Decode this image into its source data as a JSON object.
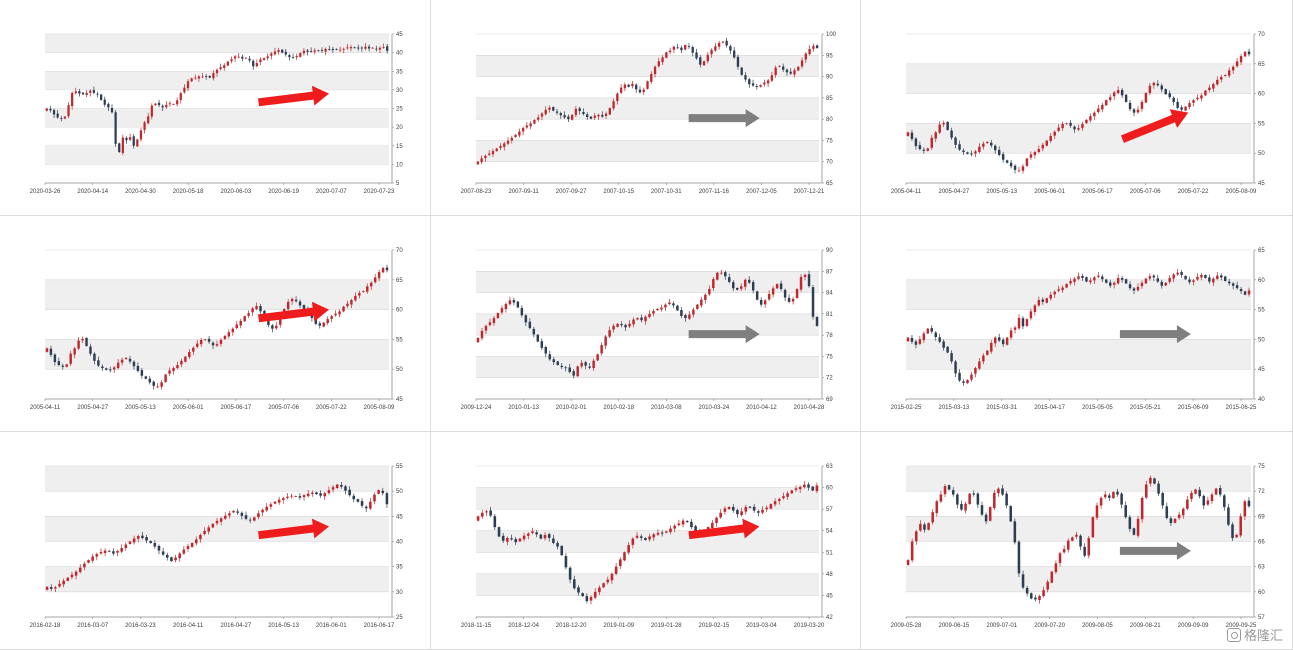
{
  "colors": {
    "up": "#c0282d",
    "down": "#2e3e52",
    "band": "#efefef",
    "arrow_red": "#ee1c1c",
    "arrow_gray": "#7f7f7f"
  },
  "watermark": {
    "text": "格隆汇"
  },
  "chart_data": [
    {
      "type": "candlestick",
      "ylim": [
        5,
        45
      ],
      "yticks": [
        5,
        10,
        15,
        20,
        25,
        30,
        35,
        40,
        45
      ],
      "xticks": [
        "2020-03-26",
        "2020-04-14",
        "2020-04-30",
        "2020-05-18",
        "2020-06-03",
        "2020-06-19",
        "2020-07-07",
        "2020-07-23"
      ],
      "arrow": "red",
      "closes": [
        25.0,
        24.5,
        23.4,
        22.6,
        22.3,
        22.8,
        25.9,
        29.2,
        29.6,
        29.0,
        28.8,
        29.2,
        29.8,
        29.2,
        28.8,
        27.3,
        26.0,
        25.3,
        24.0,
        15.5,
        13.3,
        17.2,
        16.5,
        17.3,
        15.0,
        16.7,
        19.1,
        21.3,
        22.9,
        25.8,
        26.3,
        25.9,
        25.3,
        26.0,
        26.4,
        26.2,
        27.2,
        29.1,
        30.6,
        32.3,
        33.1,
        33.3,
        33.6,
        33.6,
        33.5,
        33.3,
        34.5,
        35.4,
        36.1,
        36.6,
        37.6,
        38.2,
        39.0,
        38.9,
        38.4,
        38.6,
        37.9,
        36.3,
        37.2,
        38.2,
        38.5,
        39.0,
        39.8,
        40.3,
        40.7,
        40.0,
        39.5,
        38.8,
        38.6,
        39.1,
        39.9,
        40.5,
        40.2,
        40.4,
        40.6,
        40.5,
        40.5,
        41.0,
        40.9,
        40.7,
        40.8,
        40.8,
        41.0,
        41.4,
        41.5,
        41.3,
        41.1,
        41.2,
        41.6,
        41.1,
        41.3,
        40.9,
        41.3,
        41.5,
        40.5
      ]
    },
    {
      "type": "candlestick",
      "ylim": [
        65,
        100
      ],
      "yticks": [
        65,
        70,
        75,
        80,
        85,
        90,
        95,
        100
      ],
      "xticks": [
        "2007-08-23",
        "2007-09-11",
        "2007-09-27",
        "2007-10-15",
        "2007-10-31",
        "2007-11-16",
        "2007-12-05",
        "2007-12-21"
      ],
      "arrow": "gray",
      "closes": [
        70.0,
        70.8,
        71.4,
        71.9,
        72.5,
        73.1,
        73.7,
        74.3,
        74.9,
        75.6,
        76.3,
        77.1,
        77.9,
        78.5,
        79.0,
        79.8,
        80.4,
        81.3,
        82.2,
        82.7,
        82.0,
        81.5,
        80.9,
        80.4,
        80.0,
        81.0,
        82.4,
        81.9,
        81.2,
        80.5,
        80.1,
        80.8,
        81.0,
        80.6,
        81.3,
        82.6,
        84.2,
        86.0,
        87.4,
        88.1,
        87.6,
        88.3,
        87.0,
        86.3,
        86.9,
        88.9,
        90.6,
        92.3,
        93.6,
        94.5,
        95.7,
        96.1,
        97.0,
        96.8,
        96.2,
        97.4,
        97.0,
        95.6,
        94.3,
        92.8,
        93.6,
        95.1,
        96.3,
        97.1,
        97.9,
        98.2,
        97.3,
        96.1,
        94.5,
        92.3,
        90.4,
        89.3,
        88.2,
        87.9,
        87.6,
        88.0,
        88.6,
        89.1,
        90.3,
        92.1,
        92.5,
        91.6,
        91.0,
        90.7,
        91.5,
        92.3,
        93.8,
        95.4,
        96.5,
        97.2,
        96.7
      ]
    },
    {
      "type": "candlestick",
      "ylim": [
        45,
        70
      ],
      "yticks": [
        45,
        50,
        55,
        60,
        65,
        70
      ],
      "xticks": [
        "2005-04-11",
        "2005-04-27",
        "2005-05-13",
        "2005-06-01",
        "2005-06-17",
        "2005-07-06",
        "2005-07-22",
        "2005-08-09"
      ],
      "arrow": "red",
      "closes": [
        53.5,
        52.4,
        51.2,
        50.7,
        50.4,
        50.8,
        52.6,
        53.5,
        54.8,
        55.1,
        53.9,
        52.6,
        51.4,
        50.6,
        50.2,
        49.9,
        49.8,
        50.3,
        51.1,
        51.6,
        51.9,
        51.3,
        50.5,
        49.7,
        48.9,
        48.4,
        47.8,
        47.2,
        47.1,
        47.8,
        49.1,
        49.8,
        50.2,
        50.7,
        51.4,
        52.1,
        52.9,
        53.6,
        54.3,
        54.9,
        55.0,
        54.6,
        54.0,
        54.2,
        54.9,
        55.6,
        56.2,
        56.8,
        57.5,
        58.1,
        58.9,
        59.4,
        60.2,
        60.6,
        59.7,
        58.6,
        57.4,
        56.8,
        57.3,
        58.6,
        60.1,
        61.3,
        61.8,
        61.4,
        60.7,
        59.9,
        59.4,
        58.6,
        57.6,
        57.3,
        57.8,
        58.4,
        58.9,
        59.3,
        59.7,
        60.5,
        61.0,
        61.6,
        62.3,
        62.8,
        63.1,
        63.9,
        64.5,
        65.4,
        66.3,
        67.0,
        66.6
      ]
    },
    {
      "type": "candlestick",
      "ylim": [
        45,
        70
      ],
      "yticks": [
        45,
        50,
        55,
        60,
        65,
        70
      ],
      "xticks": [
        "2005-04-11",
        "2005-04-27",
        "2005-05-13",
        "2005-06-01",
        "2005-06-17",
        "2005-07-06",
        "2005-07-22",
        "2005-08-09"
      ],
      "arrow": "red",
      "closes": [
        53.5,
        52.4,
        51.2,
        50.7,
        50.4,
        50.8,
        52.6,
        53.5,
        54.8,
        55.1,
        53.9,
        52.6,
        51.4,
        50.6,
        50.2,
        49.9,
        49.8,
        50.3,
        51.1,
        51.6,
        51.9,
        51.3,
        50.5,
        49.7,
        48.9,
        48.4,
        47.8,
        47.2,
        47.1,
        47.8,
        49.1,
        49.8,
        50.2,
        50.7,
        51.4,
        52.1,
        52.9,
        53.6,
        54.3,
        54.9,
        55.0,
        54.6,
        54.0,
        54.2,
        54.9,
        55.6,
        56.2,
        56.8,
        57.5,
        58.1,
        58.9,
        59.4,
        60.2,
        60.6,
        59.7,
        58.6,
        57.4,
        56.8,
        57.3,
        58.6,
        60.1,
        61.3,
        61.8,
        61.4,
        60.7,
        59.9,
        59.4,
        58.6,
        57.6,
        57.3,
        57.8,
        58.4,
        58.9,
        59.3,
        59.7,
        60.5,
        61.0,
        61.6,
        62.3,
        62.8,
        63.1,
        63.9,
        64.5,
        65.4,
        66.3,
        67.0,
        66.6
      ]
    },
    {
      "type": "candlestick",
      "ylim": [
        69,
        90
      ],
      "yticks": [
        69,
        72,
        75,
        78,
        81,
        84,
        87,
        90
      ],
      "xticks": [
        "2009-12-24",
        "2010-01-13",
        "2010-02-01",
        "2010-02-18",
        "2010-03-08",
        "2010-03-24",
        "2010-04-12",
        "2010-04-28"
      ],
      "arrow": "gray",
      "closes": [
        77.6,
        78.6,
        79.3,
        79.8,
        80.4,
        81.1,
        81.8,
        82.4,
        82.9,
        82.6,
        81.9,
        80.8,
        79.8,
        79.0,
        78.1,
        77.1,
        76.2,
        75.4,
        74.6,
        74.2,
        73.8,
        73.5,
        73.4,
        72.8,
        72.3,
        73.6,
        74.1,
        73.7,
        73.4,
        74.4,
        75.3,
        76.6,
        77.8,
        78.7,
        79.3,
        79.6,
        79.4,
        79.1,
        79.6,
        80.2,
        80.4,
        80.1,
        80.6,
        81.0,
        81.4,
        81.7,
        81.9,
        82.3,
        82.6,
        82.2,
        81.5,
        80.7,
        80.4,
        80.9,
        81.6,
        82.3,
        83.0,
        83.7,
        84.5,
        85.9,
        86.8,
        86.8,
        86.3,
        85.5,
        84.6,
        84.4,
        84.9,
        85.8,
        85.4,
        84.3,
        83.0,
        82.3,
        82.9,
        83.8,
        84.6,
        85.2,
        84.5,
        83.3,
        82.7,
        83.1,
        84.5,
        86.2,
        86.5,
        84.9,
        80.6,
        79.3
      ]
    },
    {
      "type": "candlestick",
      "ylim": [
        40,
        65
      ],
      "yticks": [
        40,
        45,
        50,
        55,
        60,
        65
      ],
      "xticks": [
        "2015-02-25",
        "2015-03-13",
        "2015-03-31",
        "2015-04-17",
        "2015-05-05",
        "2015-05-21",
        "2015-06-09",
        "2015-06-25"
      ],
      "arrow": "gray",
      "closes": [
        50.3,
        49.6,
        49.1,
        50.0,
        51.0,
        51.8,
        51.3,
        50.4,
        49.6,
        48.6,
        47.8,
        46.3,
        44.3,
        43.1,
        42.7,
        43.2,
        44.1,
        45.2,
        46.3,
        47.3,
        48.1,
        49.4,
        50.3,
        49.8,
        49.2,
        50.3,
        51.5,
        52.0,
        53.6,
        52.2,
        53.4,
        54.7,
        55.7,
        56.6,
        56.3,
        56.9,
        57.5,
        58.0,
        58.4,
        58.7,
        59.3,
        59.8,
        60.2,
        60.6,
        60.3,
        59.7,
        59.9,
        60.4,
        60.7,
        60.1,
        59.5,
        59.0,
        59.5,
        60.3,
        60.0,
        59.4,
        58.6,
        58.2,
        58.8,
        59.5,
        60.2,
        60.6,
        60.4,
        59.7,
        59.0,
        59.5,
        60.3,
        60.9,
        61.2,
        60.8,
        60.1,
        59.6,
        59.9,
        60.5,
        60.8,
        60.3,
        59.7,
        60.2,
        60.7,
        60.4,
        59.8,
        59.4,
        59.0,
        58.6,
        58.1,
        57.5,
        58.2
      ]
    },
    {
      "type": "candlestick",
      "ylim": [
        25,
        55
      ],
      "yticks": [
        25,
        30,
        35,
        40,
        45,
        50,
        55
      ],
      "xticks": [
        "2016-02-18",
        "2016-03-07",
        "2016-03-23",
        "2016-04-11",
        "2016-04-27",
        "2016-05-13",
        "2016-06-01",
        "2016-06-17"
      ],
      "arrow": "red",
      "closes": [
        31.0,
        30.6,
        30.9,
        31.6,
        32.2,
        32.8,
        33.4,
        34.0,
        34.8,
        35.6,
        36.3,
        37.0,
        37.5,
        37.9,
        38.2,
        38.0,
        37.6,
        38.1,
        38.7,
        39.4,
        40.0,
        40.6,
        41.1,
        40.7,
        40.2,
        39.7,
        39.0,
        38.2,
        37.4,
        36.8,
        36.1,
        36.8,
        37.6,
        38.4,
        39.1,
        39.7,
        40.4,
        41.3,
        42.1,
        42.8,
        43.5,
        44.1,
        44.6,
        45.1,
        45.6,
        46.1,
        45.7,
        45.1,
        44.5,
        44.2,
        44.8,
        45.6,
        46.3,
        46.9,
        47.4,
        47.9,
        48.3,
        48.6,
        48.9,
        49.1,
        49.0,
        48.7,
        49.2,
        49.5,
        49.7,
        49.4,
        49.1,
        49.6,
        50.2,
        50.8,
        51.3,
        50.9,
        50.1,
        49.2,
        48.4,
        47.9,
        47.1,
        46.6,
        47.9,
        49.3,
        50.2,
        49.6,
        47.4
      ]
    },
    {
      "type": "candlestick",
      "ylim": [
        42,
        63
      ],
      "yticks": [
        42,
        45,
        48,
        51,
        54,
        57,
        60,
        63
      ],
      "xticks": [
        "2018-11-15",
        "2018-12-04",
        "2018-12-20",
        "2019-01-09",
        "2019-01-28",
        "2019-02-15",
        "2019-03-04",
        "2019-03-20"
      ],
      "arrow": "red",
      "closes": [
        56.0,
        56.5,
        56.7,
        56.1,
        54.5,
        53.2,
        52.6,
        53.0,
        52.8,
        52.4,
        52.9,
        53.3,
        53.6,
        53.9,
        53.5,
        52.9,
        53.4,
        53.0,
        52.3,
        51.8,
        50.6,
        48.9,
        47.2,
        46.0,
        45.4,
        44.9,
        44.2,
        44.8,
        45.5,
        46.1,
        46.7,
        47.2,
        48.0,
        49.0,
        50.0,
        51.0,
        52.0,
        52.9,
        53.3,
        53.0,
        52.7,
        53.2,
        53.5,
        53.7,
        53.6,
        53.9,
        54.3,
        54.7,
        55.0,
        55.4,
        55.2,
        54.5,
        53.8,
        53.4,
        53.9,
        54.5,
        55.1,
        55.8,
        56.5,
        57.1,
        57.3,
        56.8,
        56.3,
        56.7,
        57.3,
        57.2,
        56.8,
        56.5,
        56.9,
        57.2,
        57.7,
        58.1,
        58.4,
        58.8,
        59.2,
        59.6,
        59.9,
        60.1,
        60.4,
        60.0,
        59.6,
        60.3
      ]
    },
    {
      "type": "candlestick",
      "ylim": [
        57,
        75
      ],
      "yticks": [
        57,
        60,
        63,
        66,
        69,
        72,
        75
      ],
      "xticks": [
        "2009-05-28",
        "2009-06-15",
        "2009-07-01",
        "2009-07-20",
        "2009-08-05",
        "2009-08-21",
        "2009-09-09",
        "2009-09-25"
      ],
      "arrow": "gray",
      "closes": [
        63.8,
        66.0,
        67.2,
        68.1,
        67.4,
        68.2,
        69.5,
        70.8,
        71.6,
        72.6,
        72.2,
        71.6,
        70.4,
        69.8,
        70.5,
        71.7,
        71.6,
        70.4,
        69.2,
        68.4,
        70.1,
        71.8,
        72.3,
        71.6,
        70.3,
        68.4,
        65.9,
        62.2,
        60.5,
        59.8,
        59.2,
        59.1,
        59.5,
        60.2,
        61.2,
        62.4,
        63.4,
        64.6,
        65.1,
        66.1,
        66.5,
        66.8,
        65.4,
        64.3,
        66.4,
        68.9,
        70.3,
        71.2,
        71.6,
        71.2,
        71.9,
        71.6,
        70.4,
        68.9,
        67.5,
        66.8,
        68.7,
        71.2,
        72.8,
        73.6,
        72.9,
        71.7,
        70.3,
        68.8,
        68.2,
        68.7,
        69.2,
        69.9,
        71.0,
        71.8,
        72.2,
        71.4,
        70.3,
        70.9,
        71.6,
        72.3,
        71.6,
        70.1,
        68.0,
        66.4,
        66.8,
        69.0,
        70.8,
        70.2
      ]
    }
  ]
}
